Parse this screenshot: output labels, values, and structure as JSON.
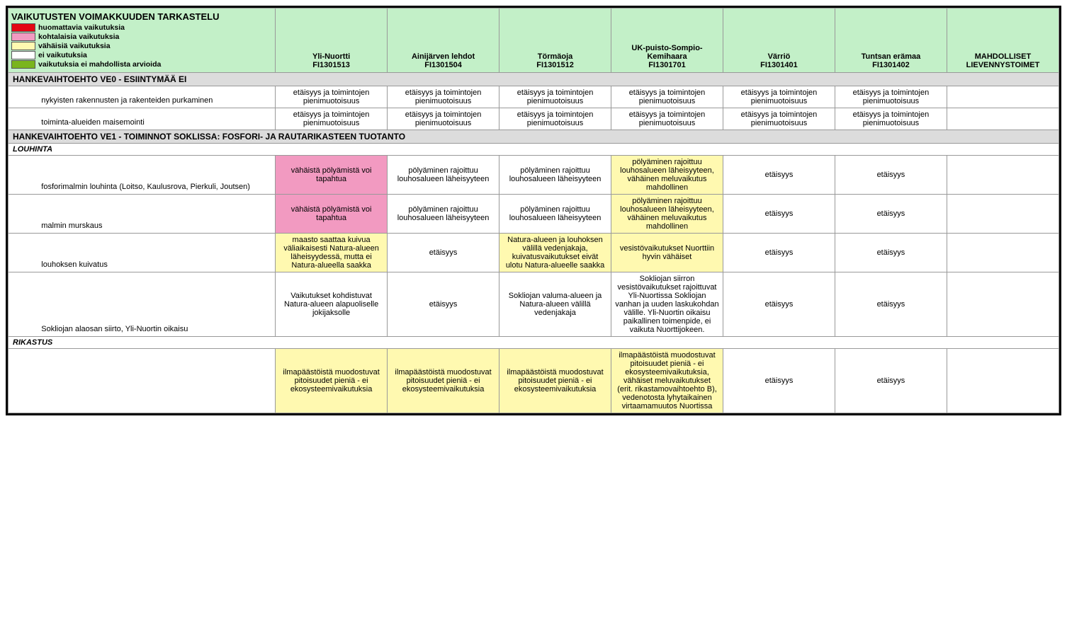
{
  "title": "VAIKUTUSTEN VOIMAKKUUDEN TARKASTELU",
  "legend": [
    {
      "color": "#e30613",
      "label": "huomattavia vaikutuksia"
    },
    {
      "color": "#f29ac1",
      "label": "kohtalaisia vaikutuksia"
    },
    {
      "color": "#fff9b0",
      "label": "vähäisiä vaikutuksia"
    },
    {
      "color": "#ffffff",
      "label": "ei vaikutuksia"
    },
    {
      "color": "#7ab51d",
      "label": "vaikutuksia ei mahdollista arvioida"
    }
  ],
  "columns": [
    {
      "name": "Yli-Nuortti",
      "code": "FI1301513"
    },
    {
      "name": "Ainijärven lehdot",
      "code": "FI1301504"
    },
    {
      "name": "Törmäoja",
      "code": "FI1301512"
    },
    {
      "name": "UK-puisto-Sompio-Kemihaara",
      "code": "FI1301701"
    },
    {
      "name": "Värriö",
      "code": "FI1301401"
    },
    {
      "name": "Tuntsan erämaa",
      "code": "FI1301402"
    }
  ],
  "mitigation_header": "MAHDOLLISET LIEVENNYSTOIMET",
  "colors": {
    "none": "#ffffff",
    "minor": "#fff9b0",
    "moderate": "#f29ac1",
    "header_bg": "#c3f0c8",
    "section_bg": "#dcdcdc"
  },
  "section_ve0": {
    "title": "HANKEVAIHTOEHTO VE0 -  ESIINTYMÄÄ EI",
    "rows": [
      {
        "label": "nykyisten rakennusten ja rakenteiden purkaminen",
        "cells": [
          {
            "t": "etäisyys ja toimintojen pienimuotoisuus",
            "c": "none"
          },
          {
            "t": "etäisyys ja toimintojen pienimuotoisuus",
            "c": "none"
          },
          {
            "t": "etäisyys ja toimintojen pienimuotoisuus",
            "c": "none"
          },
          {
            "t": "etäisyys ja toimintojen pienimuotoisuus",
            "c": "none"
          },
          {
            "t": "etäisyys ja toimintojen pienimuotoisuus",
            "c": "none"
          },
          {
            "t": "etäisyys ja toimintojen pienimuotoisuus",
            "c": "none"
          }
        ],
        "mitigation": ""
      },
      {
        "label": "toiminta-alueiden maisemointi",
        "cells": [
          {
            "t": "etäisyys ja toimintojen pienimuotoisuus",
            "c": "none"
          },
          {
            "t": "etäisyys ja toimintojen pienimuotoisuus",
            "c": "none"
          },
          {
            "t": "etäisyys ja toimintojen pienimuotoisuus",
            "c": "none"
          },
          {
            "t": "etäisyys ja toimintojen pienimuotoisuus",
            "c": "none"
          },
          {
            "t": "etäisyys ja toimintojen pienimuotoisuus",
            "c": "none"
          },
          {
            "t": "etäisyys ja toimintojen pienimuotoisuus",
            "c": "none"
          }
        ],
        "mitigation": ""
      }
    ]
  },
  "section_ve1": {
    "title": "HANKEVAIHTOEHTO VE1 - TOIMINNOT SOKLISSA: FOSFORI- JA RAUTARIKASTEEN TUOTANTO",
    "sub_louhinta": {
      "title": "LOUHINTA",
      "rows": [
        {
          "label": "fosforimalmin louhinta (Loitso, Kaulusrova, Pierkuli, Joutsen)",
          "cells": [
            {
              "t": "vähäistä pölyämistä voi tapahtua",
              "c": "moderate"
            },
            {
              "t": "pölyäminen rajoittuu louhosalueen läheisyyteen",
              "c": "none"
            },
            {
              "t": "pölyäminen rajoittuu louhosalueen läheisyyteen",
              "c": "none"
            },
            {
              "t": "pölyäminen rajoittuu louhosalueen läheisyyteen, vähäinen meluvaikutus mahdollinen",
              "c": "minor"
            },
            {
              "t": "etäisyys",
              "c": "none"
            },
            {
              "t": "etäisyys",
              "c": "none"
            }
          ],
          "mitigation": ""
        },
        {
          "label": "malmin murskaus",
          "cells": [
            {
              "t": "vähäistä pölyämistä voi tapahtua",
              "c": "moderate"
            },
            {
              "t": "pölyäminen rajoittuu louhosalueen läheisyyteen",
              "c": "none"
            },
            {
              "t": "pölyäminen rajoittuu louhosalueen läheisyyteen",
              "c": "none"
            },
            {
              "t": "pölyäminen rajoittuu louhosalueen läheisyyteen, vähäinen meluvaikutus mahdollinen",
              "c": "minor"
            },
            {
              "t": "etäisyys",
              "c": "none"
            },
            {
              "t": "etäisyys",
              "c": "none"
            }
          ],
          "mitigation": ""
        },
        {
          "label": "louhoksen kuivatus",
          "cells": [
            {
              "t": "maasto saattaa kuivua väliaikaisesti Natura-alueen läheisyydessä, mutta ei Natura-alueella saakka",
              "c": "minor"
            },
            {
              "t": "etäisyys",
              "c": "none"
            },
            {
              "t": "Natura-alueen ja louhoksen välillä vedenjakaja, kuivatusvaikutukset eivät ulotu Natura-alueelle saakka",
              "c": "minor"
            },
            {
              "t": "vesistövaikutukset Nuorttiin hyvin vähäiset",
              "c": "minor"
            },
            {
              "t": "etäisyys",
              "c": "none"
            },
            {
              "t": "etäisyys",
              "c": "none"
            }
          ],
          "mitigation": ""
        },
        {
          "label": "Sokliojan alaosan siirto, Yli-Nuortin oikaisu",
          "cells": [
            {
              "t": "Vaikutukset kohdistuvat Natura-alueen alapuoliselle jokijaksolle",
              "c": "none"
            },
            {
              "t": "etäisyys",
              "c": "none"
            },
            {
              "t": "Sokliojan valuma-alueen ja Natura-alueen välillä vedenjakaja",
              "c": "none"
            },
            {
              "t": "Sokliojan siirron vesistövaikutukset rajoittuvat Yli-Nuortissa Sokliojan vanhan ja uuden laskukohdan välille. Yli-Nuortin oikaisu paikallinen toimenpide, ei vaikuta Nuorttijokeen.",
              "c": "none"
            },
            {
              "t": "etäisyys",
              "c": "none"
            },
            {
              "t": "etäisyys",
              "c": "none"
            }
          ],
          "mitigation": ""
        }
      ]
    },
    "sub_rikastus": {
      "title": "RIKASTUS",
      "rows": [
        {
          "label": "",
          "cells": [
            {
              "t": "ilmapäästöistä muodostuvat pitoisuudet pieniä - ei ekosysteemivaikutuksia",
              "c": "minor"
            },
            {
              "t": "ilmapäästöistä muodostuvat pitoisuudet pieniä - ei ekosysteemivaikutuksia",
              "c": "minor"
            },
            {
              "t": "ilmapäästöistä muodostuvat pitoisuudet pieniä - ei ekosysteemivaikutuksia",
              "c": "minor"
            },
            {
              "t": "ilmapäästöistä muodostuvat pitoisuudet pieniä - ei ekosysteemivaikutuksia, vähäiset meluvaikutukset (erit. rikastamovaihtoehto B), vedenotosta lyhytaikainen virtaamamuutos Nuortissa",
              "c": "minor"
            },
            {
              "t": "etäisyys",
              "c": "none"
            },
            {
              "t": "etäisyys",
              "c": "none"
            }
          ],
          "mitigation": ""
        }
      ]
    }
  }
}
